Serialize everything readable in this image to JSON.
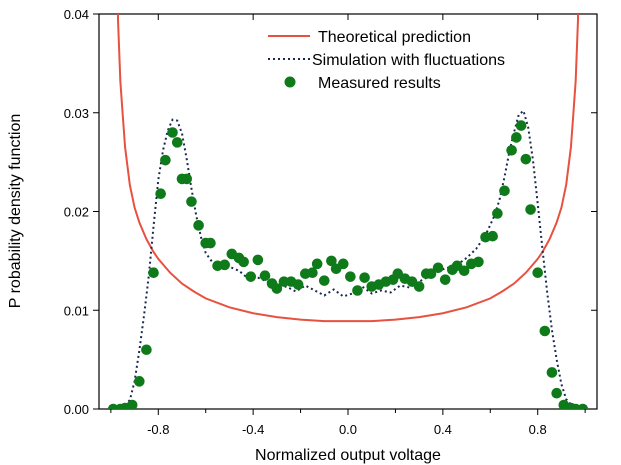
{
  "chart_data": {
    "type": "line",
    "title": "",
    "xlabel": "Normalized output voltage",
    "ylabel": "P robability density function",
    "xlim": [
      -1.05,
      1.05
    ],
    "ylim": [
      0,
      0.04
    ],
    "xticks": [
      -0.8,
      -0.4,
      0.0,
      0.4,
      0.8
    ],
    "xtick_labels": [
      "-0.8",
      "-0.4",
      "0.0",
      "0.4",
      "0.8"
    ],
    "yticks": [
      0.0,
      0.01,
      0.02,
      0.03,
      0.04
    ],
    "ytick_labels": [
      "0.00",
      "0.01",
      "0.02",
      "0.03",
      "0.04"
    ],
    "grid": false,
    "legend": "top-right",
    "series": [
      {
        "name": "Theoretical prediction",
        "style": "solid-line",
        "color": "#e8513f",
        "x": [
          -0.97,
          -0.96,
          -0.95,
          -0.94,
          -0.92,
          -0.9,
          -0.88,
          -0.85,
          -0.82,
          -0.8,
          -0.75,
          -0.7,
          -0.65,
          -0.6,
          -0.5,
          -0.4,
          -0.3,
          -0.2,
          -0.1,
          0.0,
          0.1,
          0.2,
          0.3,
          0.4,
          0.5,
          0.6,
          0.65,
          0.7,
          0.75,
          0.8,
          0.82,
          0.85,
          0.88,
          0.9,
          0.92,
          0.94,
          0.95,
          0.96,
          0.97
        ],
        "y": [
          0.0395,
          0.0332,
          0.0298,
          0.0265,
          0.0227,
          0.0204,
          0.0189,
          0.0172,
          0.0159,
          0.0152,
          0.0138,
          0.0127,
          0.0119,
          0.0112,
          0.0103,
          0.0097,
          0.0093,
          0.00905,
          0.0089,
          0.0089,
          0.0089,
          0.00905,
          0.0093,
          0.0097,
          0.0103,
          0.0112,
          0.0119,
          0.0127,
          0.0138,
          0.0152,
          0.0159,
          0.0172,
          0.0189,
          0.0204,
          0.0227,
          0.0265,
          0.0298,
          0.0332,
          0.0395
        ]
      },
      {
        "name": "Simulation with fluctuations",
        "style": "dotted-line",
        "color": "#1a2a4f",
        "x": [
          -1.0,
          -0.95,
          -0.92,
          -0.9,
          -0.88,
          -0.86,
          -0.84,
          -0.82,
          -0.8,
          -0.78,
          -0.76,
          -0.74,
          -0.72,
          -0.7,
          -0.68,
          -0.66,
          -0.64,
          -0.62,
          -0.6,
          -0.57,
          -0.54,
          -0.5,
          -0.46,
          -0.42,
          -0.38,
          -0.34,
          -0.3,
          -0.26,
          -0.22,
          -0.18,
          -0.14,
          -0.1,
          -0.06,
          -0.02,
          0.02,
          0.06,
          0.1,
          0.14,
          0.18,
          0.22,
          0.26,
          0.3,
          0.34,
          0.38,
          0.42,
          0.46,
          0.5,
          0.54,
          0.58,
          0.62,
          0.64,
          0.66,
          0.68,
          0.7,
          0.72,
          0.74,
          0.76,
          0.78,
          0.8,
          0.82,
          0.84,
          0.86,
          0.88,
          0.9,
          0.92,
          0.95,
          1.0
        ],
        "y": [
          0.0,
          0.0002,
          0.0009,
          0.0028,
          0.0059,
          0.0095,
          0.0135,
          0.0185,
          0.0232,
          0.0262,
          0.0282,
          0.0293,
          0.0292,
          0.0279,
          0.0253,
          0.0223,
          0.0196,
          0.0174,
          0.0158,
          0.0148,
          0.0142,
          0.0144,
          0.014,
          0.0132,
          0.0133,
          0.0129,
          0.0122,
          0.0124,
          0.0119,
          0.0125,
          0.012,
          0.0115,
          0.0121,
          0.0114,
          0.0117,
          0.0124,
          0.0117,
          0.012,
          0.0118,
          0.0125,
          0.0123,
          0.0129,
          0.0134,
          0.014,
          0.0143,
          0.0146,
          0.0153,
          0.0162,
          0.0176,
          0.0197,
          0.0213,
          0.0235,
          0.026,
          0.028,
          0.0298,
          0.0302,
          0.0285,
          0.0252,
          0.0208,
          0.0162,
          0.0118,
          0.008,
          0.005,
          0.0025,
          0.001,
          0.0002,
          0.0
        ]
      },
      {
        "name": "Measured results",
        "style": "markers",
        "color": "#0f7a1a",
        "x": [
          -0.99,
          -0.96,
          -0.94,
          -0.91,
          -0.88,
          -0.85,
          -0.82,
          -0.79,
          -0.77,
          -0.74,
          -0.72,
          -0.7,
          -0.68,
          -0.66,
          -0.63,
          -0.6,
          -0.58,
          -0.55,
          -0.52,
          -0.49,
          -0.46,
          -0.44,
          -0.41,
          -0.38,
          -0.35,
          -0.32,
          -0.3,
          -0.27,
          -0.24,
          -0.21,
          -0.18,
          -0.15,
          -0.13,
          -0.1,
          -0.07,
          -0.05,
          -0.02,
          0.01,
          0.04,
          0.07,
          0.1,
          0.13,
          0.16,
          0.19,
          0.21,
          0.24,
          0.27,
          0.3,
          0.33,
          0.35,
          0.38,
          0.41,
          0.44,
          0.46,
          0.49,
          0.52,
          0.55,
          0.58,
          0.61,
          0.63,
          0.66,
          0.69,
          0.71,
          0.73,
          0.75,
          0.77,
          0.8,
          0.83,
          0.86,
          0.88,
          0.91,
          0.94,
          0.96,
          0.99
        ],
        "y": [
          0.0,
          0.0,
          0.0001,
          0.0004,
          0.0028,
          0.006,
          0.0138,
          0.0218,
          0.0252,
          0.028,
          0.027,
          0.0233,
          0.0233,
          0.021,
          0.0186,
          0.0168,
          0.0168,
          0.0145,
          0.0146,
          0.0157,
          0.0153,
          0.0149,
          0.0134,
          0.0151,
          0.0135,
          0.0127,
          0.0122,
          0.0129,
          0.0129,
          0.0126,
          0.0137,
          0.0138,
          0.0147,
          0.013,
          0.015,
          0.0142,
          0.0147,
          0.0134,
          0.012,
          0.0133,
          0.0124,
          0.0126,
          0.0129,
          0.0131,
          0.0137,
          0.0132,
          0.0129,
          0.0124,
          0.0137,
          0.0137,
          0.0143,
          0.0131,
          0.0141,
          0.0145,
          0.014,
          0.0147,
          0.0149,
          0.0174,
          0.0175,
          0.0198,
          0.0221,
          0.0262,
          0.0275,
          0.0287,
          0.0253,
          0.0202,
          0.0138,
          0.0079,
          0.0037,
          0.0016,
          0.0004,
          0.0001,
          0.0,
          0.0
        ]
      }
    ]
  }
}
